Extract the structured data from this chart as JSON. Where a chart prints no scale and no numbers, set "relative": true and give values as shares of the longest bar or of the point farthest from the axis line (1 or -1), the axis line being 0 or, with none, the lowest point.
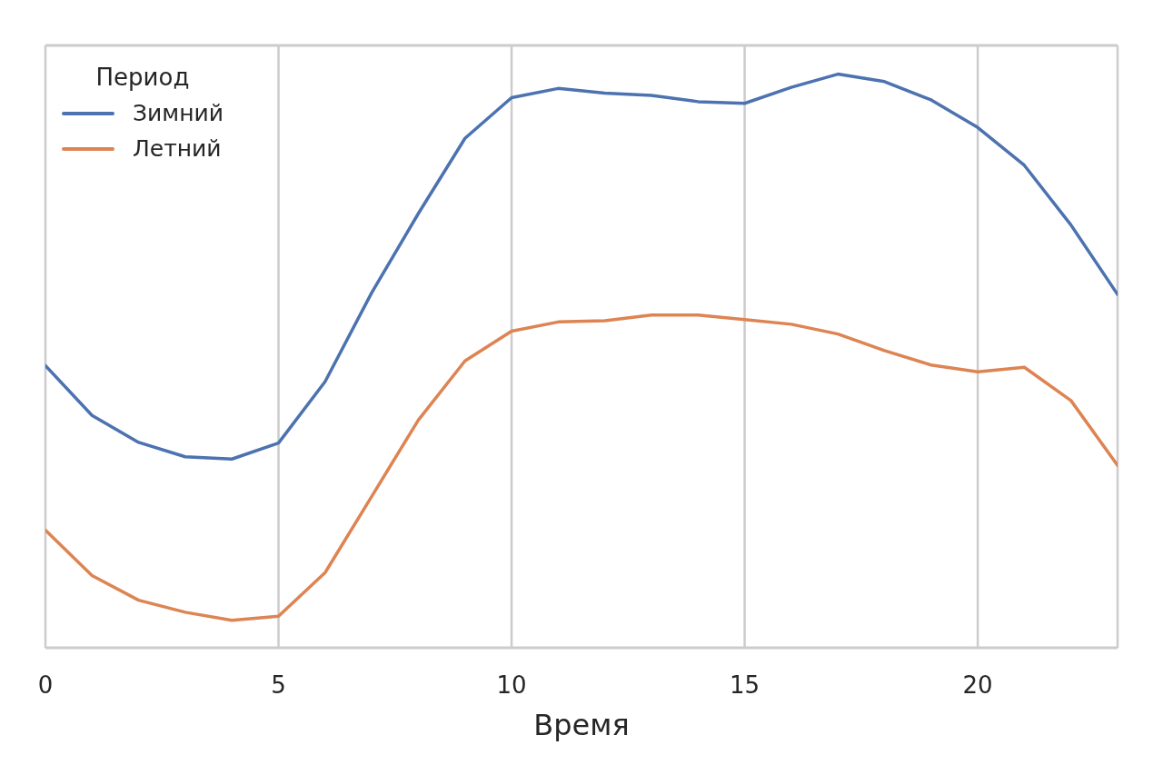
{
  "chart_data": {
    "type": "line",
    "xlabel": "Время",
    "legend_title": "Период",
    "relative": true,
    "x": [
      0,
      1,
      2,
      3,
      4,
      5,
      6,
      7,
      8,
      9,
      10,
      11,
      12,
      13,
      14,
      15,
      16,
      17,
      18,
      19,
      20,
      21,
      22,
      23
    ],
    "series": [
      {
        "name": "Зимний",
        "color": "#4c72b0",
        "values": [
          0.492,
          0.405,
          0.358,
          0.333,
          0.329,
          0.357,
          0.464,
          0.619,
          0.757,
          0.888,
          0.959,
          0.975,
          0.967,
          0.963,
          0.952,
          0.949,
          0.977,
          1,
          0.987,
          0.955,
          0.907,
          0.841,
          0.737,
          0.616
        ]
      },
      {
        "name": "Летний",
        "color": "#dd8452",
        "values": [
          0.205,
          0.126,
          0.083,
          0.062,
          0.048,
          0.055,
          0.131,
          0.264,
          0.397,
          0.5,
          0.552,
          0.568,
          0.57,
          0.58,
          0.58,
          0.572,
          0.564,
          0.547,
          0.518,
          0.493,
          0.481,
          0.489,
          0.431,
          0.318
        ]
      }
    ],
    "xlim": [
      0,
      23
    ],
    "xticks": [
      0,
      5,
      10,
      15,
      20
    ],
    "grid": "x",
    "legend": "top left"
  }
}
